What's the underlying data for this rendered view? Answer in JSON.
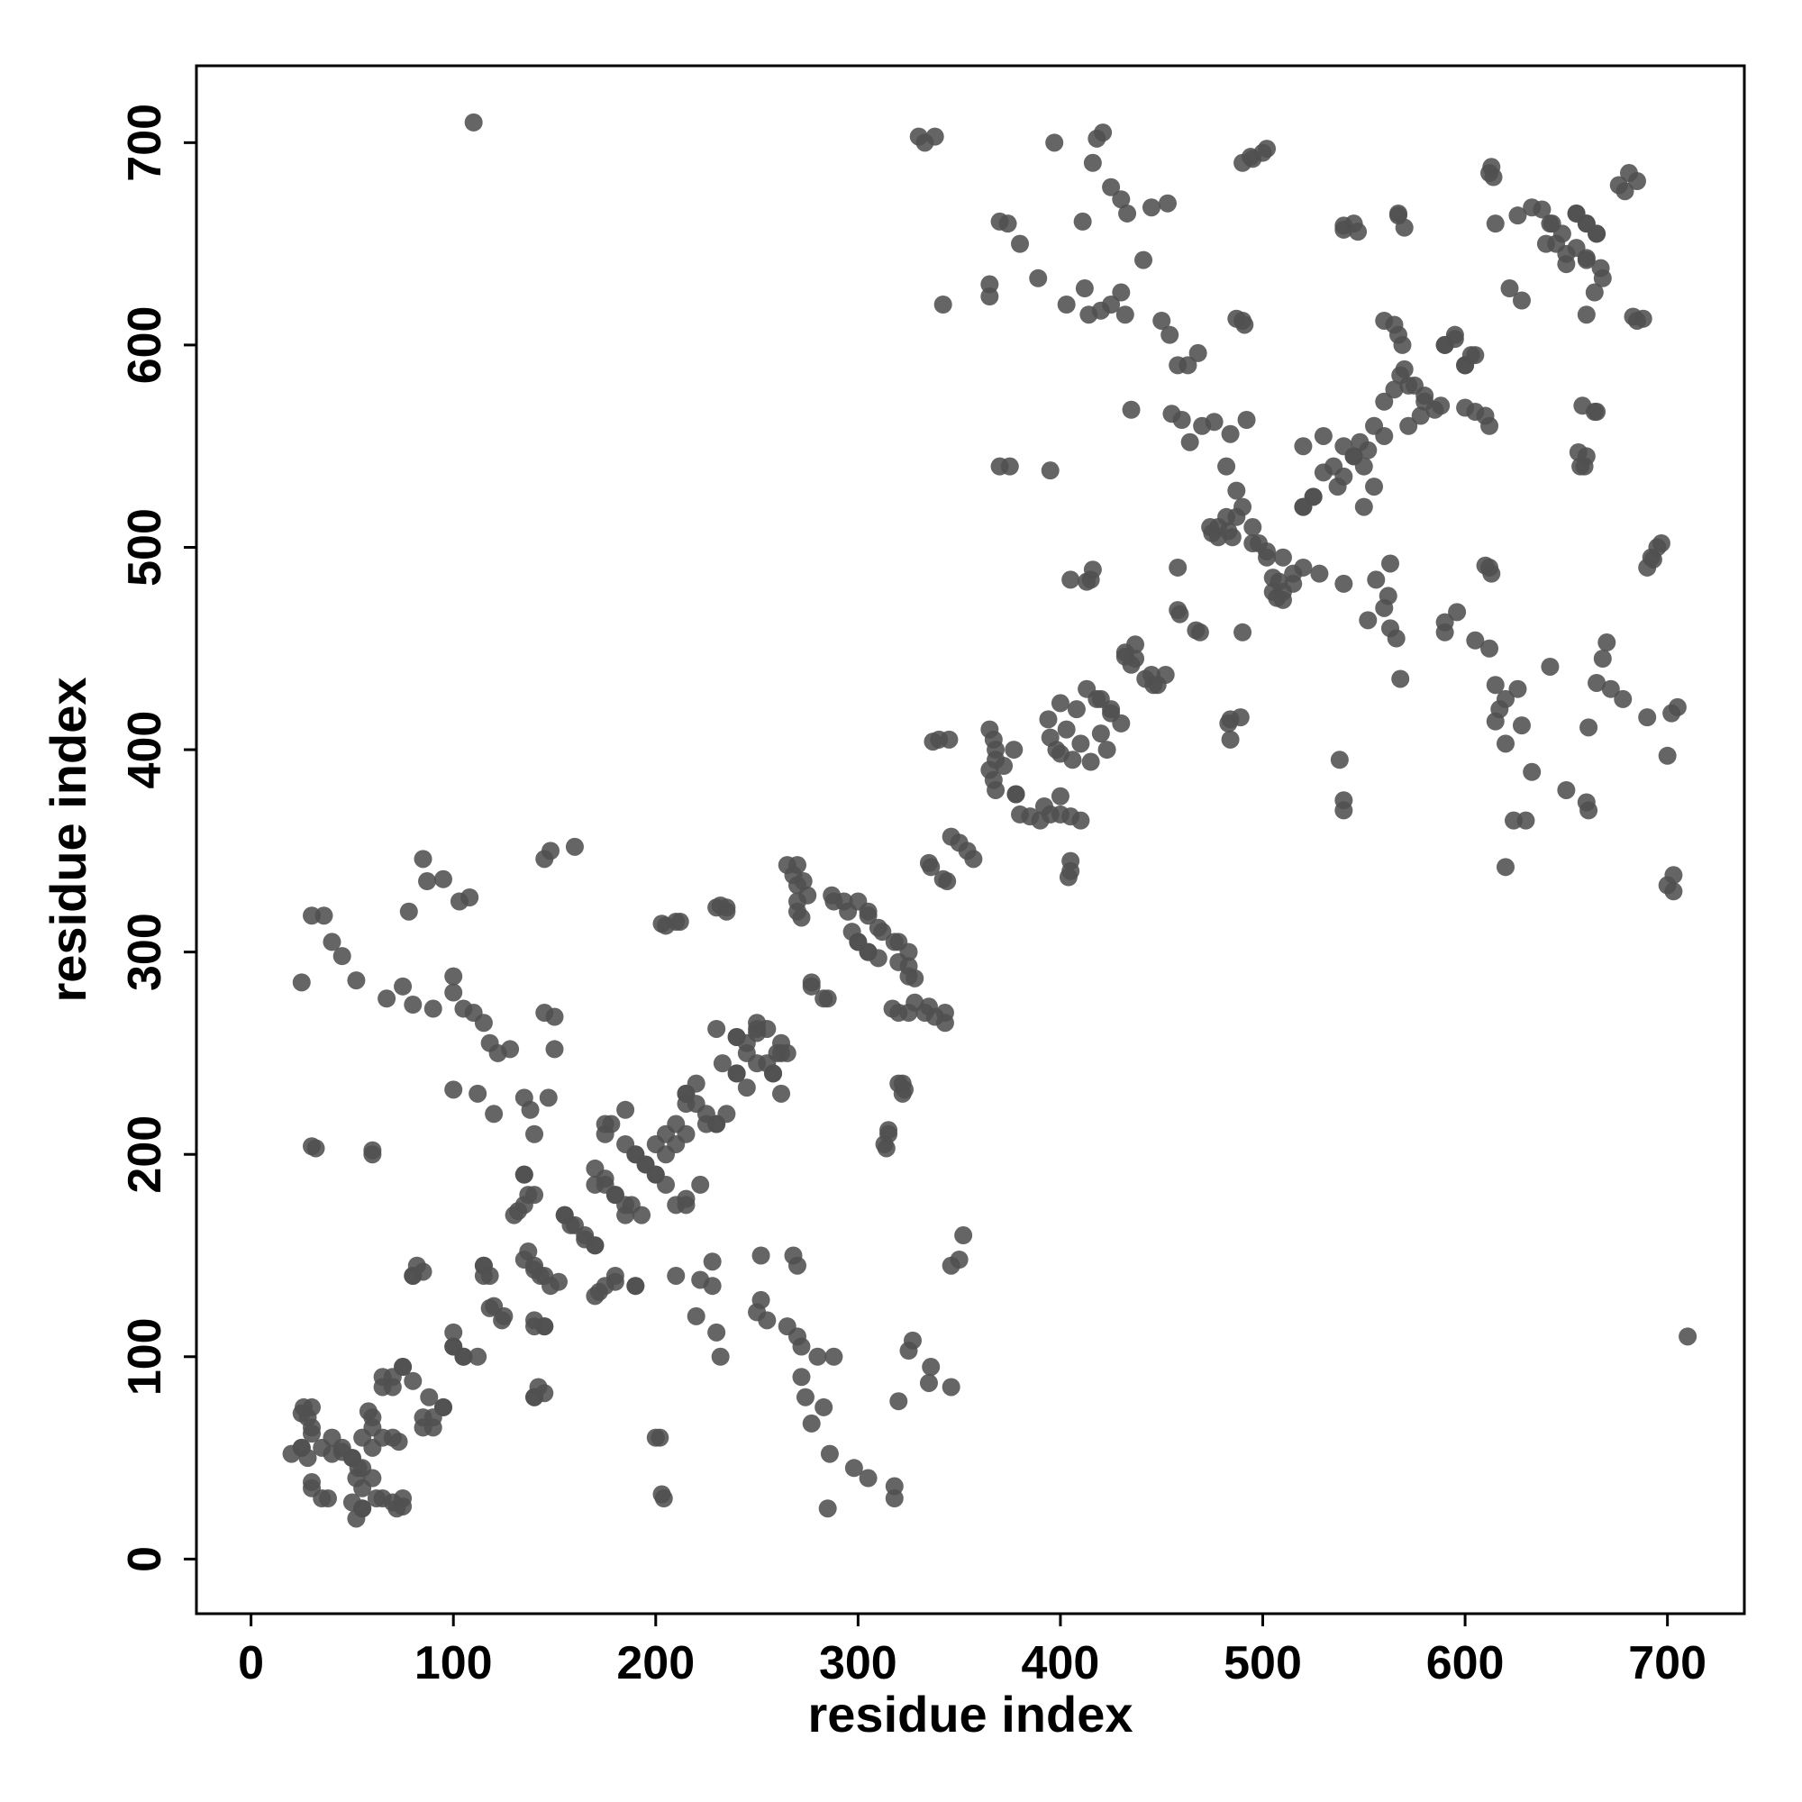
{
  "chart_data": {
    "type": "scatter",
    "xlabel": "residue index",
    "ylabel": "residue index",
    "symmetric": true,
    "color": "#505050",
    "xlim": [
      -27,
      738
    ],
    "ylim": [
      -27,
      738
    ],
    "xticks": [
      0,
      100,
      200,
      300,
      400,
      500,
      600,
      700
    ],
    "yticks": [
      0,
      100,
      200,
      300,
      400,
      500,
      600,
      700
    ],
    "x": [
      110,
      330,
      333,
      338,
      397,
      418,
      421,
      416,
      425,
      430,
      433,
      445,
      453,
      490,
      495,
      500,
      370,
      374,
      380,
      389,
      365,
      365,
      342,
      411,
      403,
      412,
      414,
      420,
      425,
      430,
      432,
      441,
      435,
      450,
      454,
      458,
      463,
      468,
      487,
      491,
      370,
      375,
      395,
      455,
      460,
      464,
      470,
      476,
      484,
      492,
      482,
      487,
      405,
      413,
      432,
      437,
      442,
      446,
      452,
      458,
      458,
      467,
      368,
      372,
      378,
      380,
      385,
      390,
      395,
      400,
      405,
      410,
      398,
      403,
      408,
      413,
      420,
      425,
      423,
      415,
      406,
      337,
      340,
      345,
      335,
      342,
      346,
      354,
      484,
      489,
      474,
      478,
      483,
      487,
      490,
      495,
      498,
      502,
      505,
      507,
      510,
      515,
      520,
      525,
      530,
      535,
      520,
      530,
      540,
      545,
      552,
      555,
      560,
      565,
      570,
      575,
      580,
      585,
      590,
      595,
      600,
      605,
      560,
      567,
      567,
      570,
      600,
      610,
      540,
      545,
      622,
      626,
      612,
      633,
      638,
      642,
      645,
      650,
      655,
      660,
      655,
      660,
      665,
      660,
      683,
      688,
      676,
      681,
      656,
      657,
      664,
      693,
      697,
      612,
      25,
      30,
      36,
      40,
      45,
      52,
      30,
      60,
      78,
      87,
      85,
      95,
      103,
      108,
      67,
      75,
      80,
      90,
      100,
      100,
      105,
      110,
      115,
      118,
      122,
      128,
      100,
      112,
      120,
      135,
      138,
      140,
      147,
      135,
      140,
      132,
      145,
      148,
      160,
      145,
      150,
      150,
      137,
      140,
      145,
      148,
      155,
      160,
      165,
      170,
      170,
      175,
      180,
      185,
      178,
      185,
      190,
      195,
      200,
      205,
      210,
      215,
      193,
      200,
      205,
      210,
      215,
      220,
      225,
      230,
      235,
      203,
      210,
      230,
      235,
      230,
      240,
      245,
      250,
      255,
      260,
      265,
      233,
      240,
      250,
      258,
      265,
      270,
      273,
      275,
      270,
      277,
      283,
      287,
      293,
      300,
      305,
      310,
      318,
      300,
      305,
      310,
      320,
      325,
      317,
      325,
      333,
      338,
      320,
      323,
      315,
      313,
      55,
      60,
      65,
      70,
      75,
      80,
      85,
      90,
      95,
      65,
      73,
      100,
      105,
      112,
      115,
      118,
      120,
      124,
      140,
      145,
      140,
      145,
      80,
      85,
      20,
      25,
      30,
      25,
      30,
      35,
      40,
      45,
      50,
      55,
      60,
      62,
      70,
      75,
      55,
      50,
      35,
      30,
      170,
      175,
      180,
      190,
      200,
      203
    ],
    "y": [
      710,
      703,
      700,
      703,
      700,
      702,
      705,
      690,
      678,
      672,
      665,
      668,
      670,
      690,
      692,
      695,
      661,
      660,
      650,
      633,
      630,
      624,
      620,
      661,
      620,
      628,
      615,
      617,
      620,
      626,
      615,
      642,
      568,
      612,
      605,
      590,
      590,
      596,
      613,
      610,
      540,
      540,
      538,
      566,
      563,
      552,
      560,
      562,
      556,
      563,
      540,
      528,
      484,
      483,
      448,
      445,
      435,
      432,
      437,
      490,
      469,
      459,
      400,
      392,
      378,
      368,
      367,
      365,
      368,
      377,
      367,
      365,
      400,
      410,
      420,
      430,
      425,
      418,
      400,
      394,
      395,
      404,
      405,
      405,
      344,
      336,
      357,
      350,
      415,
      416,
      510,
      505,
      508,
      515,
      520,
      510,
      502,
      495,
      485,
      475,
      478,
      482,
      520,
      525,
      537,
      540,
      550,
      555,
      550,
      545,
      548,
      560,
      572,
      578,
      588,
      580,
      572,
      568,
      600,
      603,
      590,
      595,
      612,
      605,
      665,
      658,
      569,
      565,
      659,
      660,
      628,
      664,
      685,
      668,
      667,
      660,
      650,
      640,
      648,
      643,
      665,
      660,
      655,
      615,
      614,
      613,
      679,
      685,
      547,
      540,
      567,
      494,
      502,
      490,
      285,
      318,
      318,
      305,
      298,
      286,
      204,
      202,
      320,
      335,
      346,
      336,
      325,
      327,
      277,
      283,
      274,
      272,
      280,
      288,
      272,
      270,
      265,
      255,
      250,
      252,
      232,
      230,
      220,
      228,
      222,
      210,
      228,
      190,
      180,
      172,
      346,
      350,
      352,
      270,
      268,
      252,
      152,
      143,
      140,
      135,
      170,
      165,
      158,
      155,
      185,
      188,
      180,
      175,
      215,
      222,
      200,
      195,
      190,
      185,
      175,
      175,
      170,
      205,
      210,
      215,
      230,
      225,
      215,
      215,
      220,
      314,
      315,
      322,
      322,
      262,
      258,
      255,
      262,
      262,
      250,
      250,
      245,
      240,
      245,
      240,
      343,
      343,
      335,
      328,
      320,
      285,
      277,
      328,
      325,
      325,
      320,
      312,
      305,
      305,
      300,
      297,
      295,
      288,
      272,
      270,
      270,
      268,
      235,
      232,
      212,
      205,
      60,
      70,
      85,
      90,
      95,
      88,
      70,
      65,
      75,
      60,
      58,
      105,
      100,
      100,
      145,
      140,
      125,
      118,
      115,
      115,
      80,
      82,
      140,
      142,
      52,
      55,
      65,
      72,
      75,
      55,
      52,
      53,
      50,
      45,
      40,
      30,
      28,
      26,
      25,
      28,
      30,
      38,
      130,
      135,
      137,
      135,
      60,
      32
    ]
  }
}
